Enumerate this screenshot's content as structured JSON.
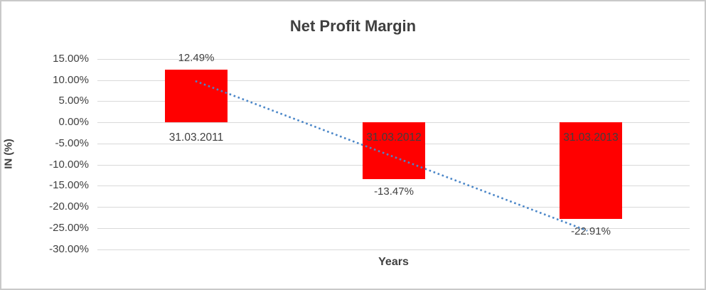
{
  "chart_data": {
    "type": "bar",
    "title": "Net Profit Margin",
    "xlabel": "Years",
    "ylabel": "IN (%)",
    "categories": [
      "31.03.2011",
      "31.03.2012",
      "31.03.2013"
    ],
    "values": [
      12.49,
      -13.47,
      -22.91
    ],
    "value_labels": [
      "12.49%",
      "-13.47%",
      "-22.91%"
    ],
    "yticks": [
      15,
      10,
      5,
      0,
      -5,
      -10,
      -15,
      -20,
      -25,
      -30
    ],
    "ytick_labels": [
      "15.00%",
      "10.00%",
      "5.00%",
      "0.00%",
      "-5.00%",
      "-10.00%",
      "-15.00%",
      "-20.00%",
      "-25.00%",
      "-30.00%"
    ],
    "ylim": [
      -30,
      15
    ],
    "grid": true,
    "legend": "none",
    "trendline": {
      "type": "linear",
      "style": "dotted",
      "start_value": 9.74,
      "end_value": -25.66
    },
    "colors": {
      "bar": "#ff0000",
      "trendline": "#4a86c8",
      "gridline": "#d9d9d9",
      "text": "#404040",
      "border": "#c9c9c9",
      "background": "#ffffff"
    }
  }
}
